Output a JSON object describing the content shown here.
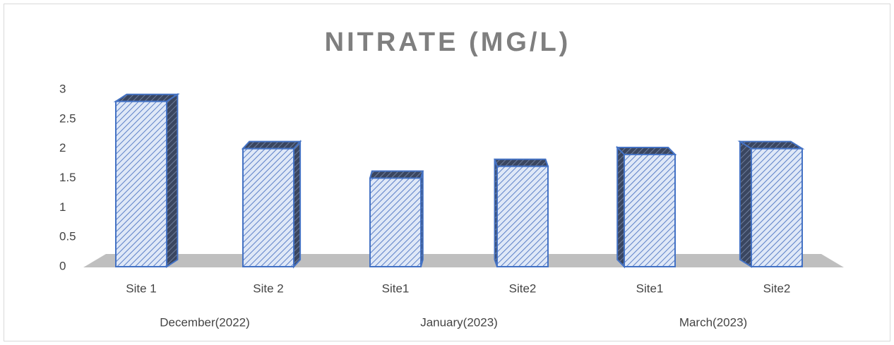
{
  "chart_data": {
    "type": "bar3d",
    "title": "NITRATE (MG/L)",
    "categories": [
      "Site 1",
      "Site 2",
      "Site1",
      "Site2",
      "Site1",
      "Site2"
    ],
    "groups": [
      {
        "label": "December(2022)",
        "span": 2
      },
      {
        "label": "January(2023)",
        "span": 2
      },
      {
        "label": "March(2023)",
        "span": 2
      }
    ],
    "values": [
      2.8,
      2.0,
      1.5,
      1.7,
      1.9,
      2.0
    ],
    "color": "#4472c4",
    "ylim": [
      0,
      3
    ],
    "yticks": [
      0,
      0.5,
      1,
      1.5,
      2,
      2.5,
      3
    ],
    "grid": false
  }
}
